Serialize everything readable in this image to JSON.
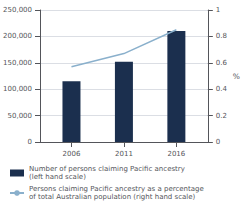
{
  "chart_data": {
    "type": "bar",
    "x": [
      2006,
      2011,
      2016
    ],
    "xlim": [
      2003,
      2019
    ],
    "xticks": [
      2006,
      2011,
      2016
    ],
    "ylim": [
      0,
      250000
    ],
    "yticks": [
      0,
      {
        "value": 50000,
        "label": "50,000"
      },
      {
        "value": 100000,
        "label": "100,000"
      },
      {
        "value": 150000,
        "label": "150,000"
      },
      {
        "value": 200000,
        "label": "200,000"
      },
      {
        "value": 250000,
        "label": "250,000"
      }
    ],
    "y2lim": [
      0,
      1.0
    ],
    "y2ticks": [
      0,
      0.2,
      0.4,
      0.6,
      0.8,
      1
    ],
    "y2label": "%",
    "grid": true,
    "legend": "bottom",
    "series": [
      {
        "name": "Number of persons claiming Pacific ancestry\n(left hand scale)",
        "type": "bar",
        "color": "#1b2f4e",
        "values": [
          115000,
          152000,
          210000
        ]
      },
      {
        "name": "Persons claiming Pacific ancestry as a percentage\nof total Australian population (right hand scale)",
        "type": "line",
        "axis": "y2",
        "color": "#8ab0cc",
        "values": [
          0.57,
          0.67,
          0.85
        ]
      }
    ]
  }
}
